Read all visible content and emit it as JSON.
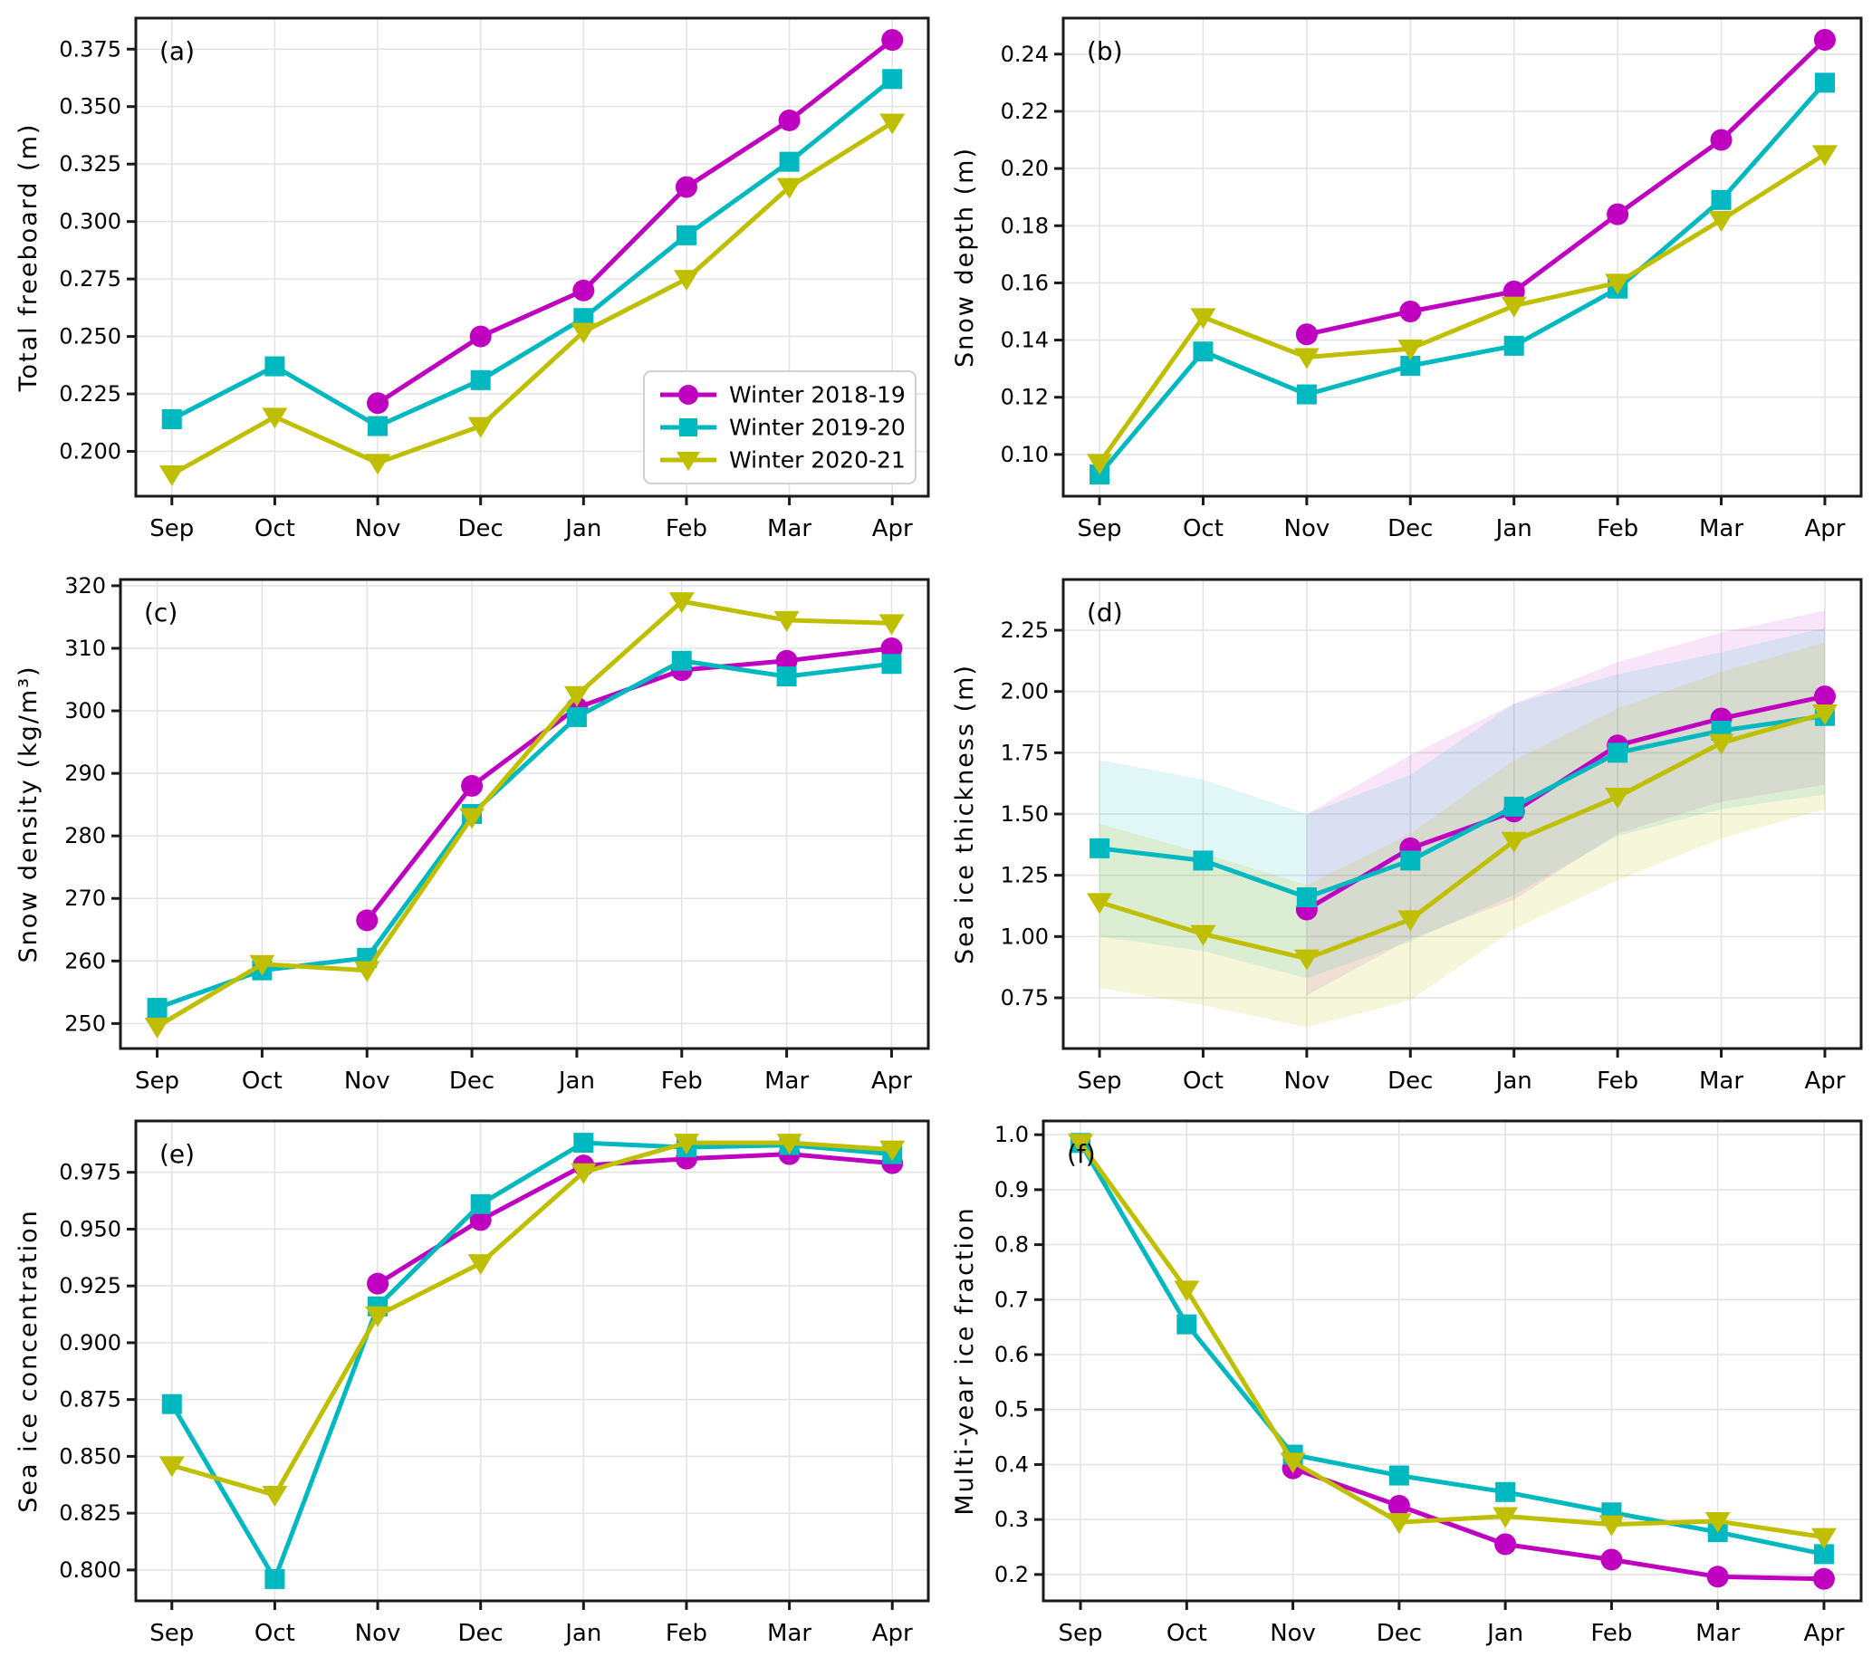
{
  "figure": {
    "background": "#ffffff",
    "grid_color": "#e4e4e4",
    "spine_color": "#1a1a1a",
    "text_color": "#000000",
    "months": [
      "Sep",
      "Oct",
      "Nov",
      "Dec",
      "Jan",
      "Feb",
      "Mar",
      "Apr"
    ],
    "legend": {
      "panel": "a",
      "position": "lower right",
      "items": [
        {
          "label": "Winter 2018-19",
          "color": "#C000C0",
          "marker": "circle"
        },
        {
          "label": "Winter 2019-20",
          "color": "#00B8BF",
          "marker": "square"
        },
        {
          "label": "Winter 2020-21",
          "color": "#BFBF00",
          "marker": "triangle-down"
        }
      ]
    }
  },
  "chart_data": [
    {
      "id": "a",
      "type": "line",
      "panel_label": "(a)",
      "ylabel": "Total freeboard (m)",
      "categories": [
        "Sep",
        "Oct",
        "Nov",
        "Dec",
        "Jan",
        "Feb",
        "Mar",
        "Apr"
      ],
      "yticks": [
        0.2,
        0.225,
        0.25,
        0.275,
        0.3,
        0.325,
        0.35,
        0.375
      ],
      "ytick_labels": [
        "0.200",
        "0.225",
        "0.250",
        "0.275",
        "0.300",
        "0.325",
        "0.350",
        "0.375"
      ],
      "ylim": [
        0.1805,
        0.3885
      ],
      "grid": true,
      "legend": true,
      "series": [
        {
          "name": "Winter 2018-19",
          "color": "#C000C0",
          "marker": "circle",
          "values": [
            null,
            null,
            0.221,
            0.25,
            0.27,
            0.315,
            0.344,
            0.379
          ]
        },
        {
          "name": "Winter 2019-20",
          "color": "#00B8BF",
          "marker": "square",
          "values": [
            0.214,
            0.237,
            0.211,
            0.231,
            0.258,
            0.294,
            0.326,
            0.362
          ]
        },
        {
          "name": "Winter 2020-21",
          "color": "#BFBF00",
          "marker": "triangle-down",
          "values": [
            0.19,
            0.215,
            0.195,
            0.211,
            0.252,
            0.275,
            0.315,
            0.343
          ]
        }
      ]
    },
    {
      "id": "b",
      "type": "line",
      "panel_label": "(b)",
      "ylabel": "Snow depth (m)",
      "categories": [
        "Sep",
        "Oct",
        "Nov",
        "Dec",
        "Jan",
        "Feb",
        "Mar",
        "Apr"
      ],
      "yticks": [
        0.1,
        0.12,
        0.14,
        0.16,
        0.18,
        0.2,
        0.22,
        0.24
      ],
      "ytick_labels": [
        "0.10",
        "0.12",
        "0.14",
        "0.16",
        "0.18",
        "0.20",
        "0.22",
        "0.24"
      ],
      "ylim": [
        0.0854,
        0.2526
      ],
      "grid": true,
      "legend": false,
      "series": [
        {
          "name": "Winter 2018-19",
          "color": "#C000C0",
          "marker": "circle",
          "values": [
            null,
            null,
            0.142,
            0.15,
            0.157,
            0.184,
            0.21,
            0.245
          ]
        },
        {
          "name": "Winter 2019-20",
          "color": "#00B8BF",
          "marker": "square",
          "values": [
            0.093,
            0.136,
            0.121,
            0.131,
            0.138,
            0.158,
            0.189,
            0.23
          ]
        },
        {
          "name": "Winter 2020-21",
          "color": "#BFBF00",
          "marker": "triangle-down",
          "values": [
            0.097,
            0.148,
            0.134,
            0.137,
            0.152,
            0.16,
            0.182,
            0.205
          ]
        }
      ]
    },
    {
      "id": "c",
      "type": "line",
      "panel_label": "(c)",
      "ylabel": "Snow density (kg/m³)",
      "categories": [
        "Sep",
        "Oct",
        "Nov",
        "Dec",
        "Jan",
        "Feb",
        "Mar",
        "Apr"
      ],
      "yticks": [
        250,
        260,
        270,
        280,
        290,
        300,
        310,
        320
      ],
      "ytick_labels": [
        "250",
        "260",
        "270",
        "280",
        "290",
        "300",
        "310",
        "320"
      ],
      "ylim": [
        246,
        321
      ],
      "grid": true,
      "legend": false,
      "series": [
        {
          "name": "Winter 2018-19",
          "color": "#C000C0",
          "marker": "circle",
          "values": [
            null,
            null,
            266.5,
            288,
            300.5,
            306.5,
            308,
            310
          ]
        },
        {
          "name": "Winter 2019-20",
          "color": "#00B8BF",
          "marker": "square",
          "values": [
            252.5,
            258.5,
            260.5,
            283.5,
            299,
            308,
            305.5,
            307.5
          ]
        },
        {
          "name": "Winter 2020-21",
          "color": "#BFBF00",
          "marker": "triangle-down",
          "values": [
            249.5,
            259.5,
            258.5,
            283,
            302.5,
            317.5,
            314.5,
            314
          ]
        }
      ]
    },
    {
      "id": "d",
      "type": "line",
      "panel_label": "(d)",
      "ylabel": "Sea ice thickness (m)",
      "categories": [
        "Sep",
        "Oct",
        "Nov",
        "Dec",
        "Jan",
        "Feb",
        "Mar",
        "Apr"
      ],
      "yticks": [
        0.75,
        1.0,
        1.25,
        1.5,
        1.75,
        2.0,
        2.25
      ],
      "ytick_labels": [
        "0.75",
        "1.00",
        "1.25",
        "1.50",
        "1.75",
        "2.00",
        "2.25"
      ],
      "ylim": [
        0.543,
        2.457
      ],
      "grid": true,
      "legend": false,
      "bands": [
        {
          "name": "Winter 2018-19 uncertainty",
          "color": "#C000C0",
          "opacity": 0.1,
          "lower": [
            null,
            null,
            0.76,
            0.99,
            1.15,
            1.42,
            1.55,
            1.62
          ],
          "upper": [
            null,
            null,
            1.5,
            1.74,
            1.95,
            2.12,
            2.24,
            2.33
          ]
        },
        {
          "name": "Winter 2019-20 uncertainty",
          "color": "#00B8BF",
          "opacity": 0.12,
          "lower": [
            1.0,
            0.94,
            0.83,
            0.98,
            1.17,
            1.41,
            1.52,
            1.58
          ],
          "upper": [
            1.72,
            1.64,
            1.5,
            1.66,
            1.95,
            2.07,
            2.16,
            2.26
          ]
        },
        {
          "name": "Winter 2020-21 uncertainty",
          "color": "#BFBF00",
          "opacity": 0.14,
          "lower": [
            0.79,
            0.72,
            0.63,
            0.74,
            1.03,
            1.23,
            1.4,
            1.52
          ],
          "upper": [
            1.46,
            1.34,
            1.21,
            1.42,
            1.72,
            1.93,
            2.08,
            2.2
          ]
        }
      ],
      "series": [
        {
          "name": "Winter 2018-19",
          "color": "#C000C0",
          "marker": "circle",
          "values": [
            null,
            null,
            1.11,
            1.36,
            1.51,
            1.78,
            1.89,
            1.98
          ]
        },
        {
          "name": "Winter 2019-20",
          "color": "#00B8BF",
          "marker": "square",
          "values": [
            1.36,
            1.31,
            1.16,
            1.31,
            1.53,
            1.75,
            1.84,
            1.9
          ]
        },
        {
          "name": "Winter 2020-21",
          "color": "#BFBF00",
          "marker": "triangle-down",
          "values": [
            1.14,
            1.01,
            0.91,
            1.07,
            1.39,
            1.57,
            1.79,
            1.91
          ]
        }
      ]
    },
    {
      "id": "e",
      "type": "line",
      "panel_label": "(e)",
      "ylabel": "Sea ice concentration",
      "categories": [
        "Sep",
        "Oct",
        "Nov",
        "Dec",
        "Jan",
        "Feb",
        "Mar",
        "Apr"
      ],
      "yticks": [
        0.8,
        0.825,
        0.85,
        0.875,
        0.9,
        0.925,
        0.95,
        0.975
      ],
      "ytick_labels": [
        "0.800",
        "0.825",
        "0.850",
        "0.875",
        "0.900",
        "0.925",
        "0.950",
        "0.975"
      ],
      "ylim": [
        0.7864,
        0.9976
      ],
      "grid": true,
      "legend": false,
      "series": [
        {
          "name": "Winter 2018-19",
          "color": "#C000C0",
          "marker": "circle",
          "values": [
            null,
            null,
            0.926,
            0.954,
            0.978,
            0.981,
            0.983,
            0.979
          ]
        },
        {
          "name": "Winter 2019-20",
          "color": "#00B8BF",
          "marker": "square",
          "values": [
            0.873,
            0.796,
            0.916,
            0.961,
            0.988,
            0.986,
            0.987,
            0.983
          ]
        },
        {
          "name": "Winter 2020-21",
          "color": "#BFBF00",
          "marker": "triangle-down",
          "values": [
            0.846,
            0.833,
            0.912,
            0.935,
            0.975,
            0.988,
            0.988,
            0.985
          ]
        }
      ]
    },
    {
      "id": "f",
      "type": "line",
      "panel_label": "(f)",
      "ylabel": "Multi-year ice fraction",
      "categories": [
        "Sep",
        "Oct",
        "Nov",
        "Dec",
        "Jan",
        "Feb",
        "Mar",
        "Apr"
      ],
      "yticks": [
        0.2,
        0.3,
        0.4,
        0.5,
        0.6,
        0.7,
        0.8,
        0.9,
        1.0
      ],
      "ytick_labels": [
        "0.2",
        "0.3",
        "0.4",
        "0.5",
        "0.6",
        "0.7",
        "0.8",
        "0.9",
        "1.0"
      ],
      "ylim": [
        0.152,
        1.025
      ],
      "grid": true,
      "legend": false,
      "series": [
        {
          "name": "Winter 2018-19",
          "color": "#C000C0",
          "marker": "circle",
          "values": [
            null,
            null,
            0.393,
            0.325,
            0.255,
            0.227,
            0.196,
            0.192
          ]
        },
        {
          "name": "Winter 2019-20",
          "color": "#00B8BF",
          "marker": "square",
          "values": [
            0.985,
            0.655,
            0.418,
            0.38,
            0.35,
            0.313,
            0.277,
            0.237
          ]
        },
        {
          "name": "Winter 2020-21",
          "color": "#BFBF00",
          "marker": "triangle-down",
          "values": [
            0.985,
            0.718,
            0.405,
            0.295,
            0.306,
            0.291,
            0.297,
            0.268
          ]
        }
      ]
    }
  ]
}
